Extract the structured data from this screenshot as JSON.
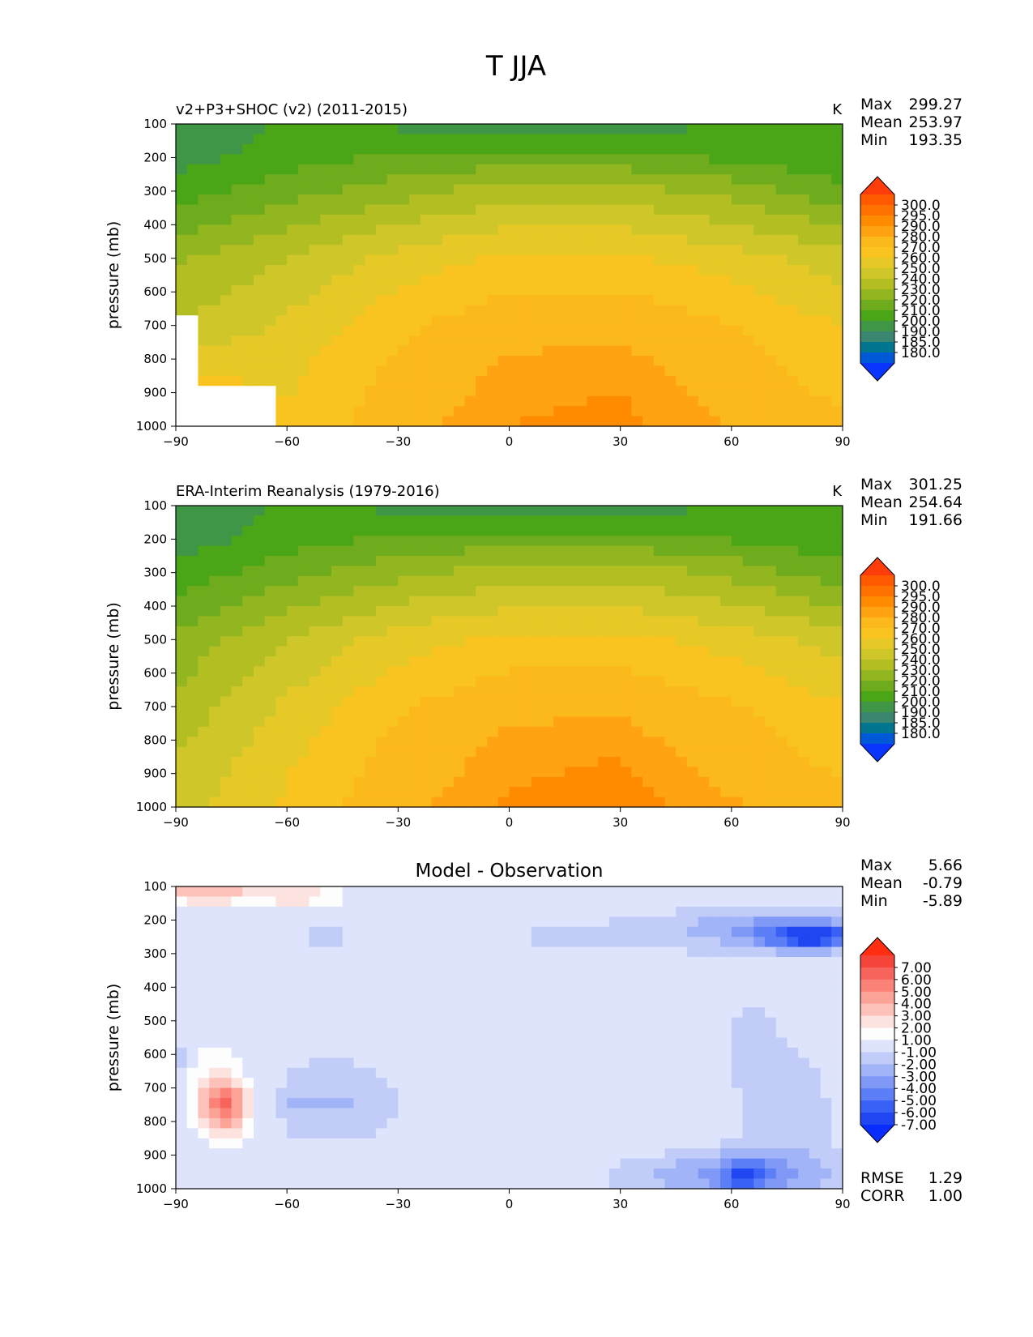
{
  "figure_title": "T JJA",
  "chart_data": [
    {
      "type": "heatmap",
      "title": "v2+P3+SHOC (v2) (2011-2015)",
      "units": "K",
      "ylabel": "pressure (mb)",
      "xlabel": "",
      "xlim": [
        -90,
        90
      ],
      "ylim": [
        1000,
        100
      ],
      "xticks": [
        "−90",
        "−60",
        "−30",
        "0",
        "30",
        "60",
        "90"
      ],
      "yticks": [
        "100",
        "200",
        "300",
        "400",
        "500",
        "600",
        "700",
        "800",
        "900",
        "1000"
      ],
      "stats": {
        "max_label": "Max",
        "max": "299.27",
        "mean_label": "Mean",
        "mean": "253.97",
        "min_label": "Min",
        "min": "193.35"
      },
      "colorbar": {
        "levels": [
          "300.0",
          "295.0",
          "290.0",
          "280.0",
          "270.0",
          "260.0",
          "250.0",
          "240.0",
          "230.0",
          "220.0",
          "210.0",
          "200.0",
          "190.0",
          "185.0",
          "180.0"
        ],
        "colors": [
          "#ff3d0a",
          "#ff5a00",
          "#ff7200",
          "#ff8c00",
          "#ffa312",
          "#fcb91c",
          "#f9c320",
          "#e6c926",
          "#cfc72a",
          "#b3be23",
          "#92b61f",
          "#6eac1d",
          "#4aa616",
          "#3f9646",
          "#3a8670",
          "#007690",
          "#0059d6",
          "#0a34ff"
        ]
      },
      "x": [
        -90,
        -60,
        -30,
        0,
        30,
        60,
        90
      ],
      "y": [
        1000,
        850,
        700,
        500,
        300,
        200,
        100
      ],
      "z": [
        [
          null,
          272,
          287,
          295,
          297,
          290,
          282
        ],
        [
          null,
          268,
          283,
          292,
          294,
          285,
          276
        ],
        [
          250,
          262,
          278,
          287,
          288,
          280,
          270
        ],
        [
          238,
          250,
          264,
          272,
          272,
          265,
          254
        ],
        [
          215,
          226,
          236,
          245,
          245,
          236,
          222
        ],
        [
          205,
          215,
          222,
          224,
          223,
          218,
          212
        ],
        [
          200,
          212,
          208,
          200,
          202,
          212,
          213
        ]
      ],
      "missing_note": ""
    },
    {
      "type": "heatmap",
      "title": "ERA-Interim Reanalysis (1979-2016)",
      "units": "K",
      "ylabel": "pressure (mb)",
      "xlabel": "",
      "xlim": [
        -90,
        90
      ],
      "ylim": [
        1000,
        100
      ],
      "xticks": [
        "−90",
        "−60",
        "−30",
        "0",
        "30",
        "60",
        "90"
      ],
      "yticks": [
        "100",
        "200",
        "300",
        "400",
        "500",
        "600",
        "700",
        "800",
        "900",
        "1000"
      ],
      "stats": {
        "max_label": "Max",
        "max": "301.25",
        "mean_label": "Mean",
        "mean": "254.64",
        "min_label": "Min",
        "min": "191.66"
      },
      "colorbar": {
        "levels": [
          "300.0",
          "295.0",
          "290.0",
          "280.0",
          "270.0",
          "260.0",
          "250.0",
          "240.0",
          "230.0",
          "220.0",
          "210.0",
          "200.0",
          "190.0",
          "185.0",
          "180.0"
        ],
        "colors": [
          "#ff3d0a",
          "#ff5a00",
          "#ff7200",
          "#ff8c00",
          "#ffa312",
          "#fcb91c",
          "#f9c320",
          "#e6c926",
          "#cfc72a",
          "#b3be23",
          "#92b61f",
          "#6eac1d",
          "#4aa616",
          "#3f9646",
          "#3a8670",
          "#007690",
          "#0059d6",
          "#0a34ff"
        ]
      },
      "x": [
        -90,
        -60,
        -30,
        0,
        30,
        60,
        90
      ],
      "y": [
        1000,
        850,
        700,
        500,
        300,
        200,
        100
      ],
      "z": [
        [
          255,
          272,
          288,
          296,
          299,
          291,
          283
        ],
        [
          250,
          268,
          284,
          293,
          295,
          286,
          277
        ],
        [
          243,
          262,
          279,
          288,
          289,
          281,
          271
        ],
        [
          232,
          250,
          265,
          273,
          273,
          266,
          255
        ],
        [
          213,
          226,
          237,
          245,
          246,
          237,
          223
        ],
        [
          205,
          215,
          222,
          225,
          224,
          219,
          213
        ],
        [
          199,
          212,
          207,
          199,
          201,
          213,
          221
        ]
      ]
    },
    {
      "type": "heatmap",
      "title": "Model - Observation",
      "units": "",
      "ylabel": "pressure (mb)",
      "xlabel": "",
      "xlim": [
        -90,
        90
      ],
      "ylim": [
        1000,
        100
      ],
      "xticks": [
        "−90",
        "−60",
        "−30",
        "0",
        "30",
        "60",
        "90"
      ],
      "yticks": [
        "100",
        "200",
        "300",
        "400",
        "500",
        "600",
        "700",
        "800",
        "900",
        "1000"
      ],
      "stats": {
        "max_label": "Max",
        "max": "5.66",
        "mean_label": "Mean",
        "mean": "-0.79",
        "min_label": "Min",
        "min": "-5.89"
      },
      "extra_stats": {
        "rmse_label": "RMSE",
        "rmse": "1.29",
        "corr_label": "CORR",
        "corr": "1.00"
      },
      "colorbar": {
        "levels": [
          "7.00",
          "6.00",
          "5.00",
          "4.00",
          "3.00",
          "2.00",
          "1.00",
          "-1.00",
          "-2.00",
          "-3.00",
          "-4.00",
          "-5.00",
          "-6.00",
          "-7.00"
        ],
        "colors": [
          "#ff2e10",
          "#f5453a",
          "#f6645c",
          "#fb8277",
          "#fca398",
          "#fcc2ba",
          "#fde3df",
          "#fdfdfd",
          "#dde4fb",
          "#c1cdf8",
          "#a2b4f8",
          "#8099f7",
          "#5c7ef6",
          "#3a61f5",
          "#1f46f0",
          "#0a2dff"
        ]
      }
    }
  ]
}
